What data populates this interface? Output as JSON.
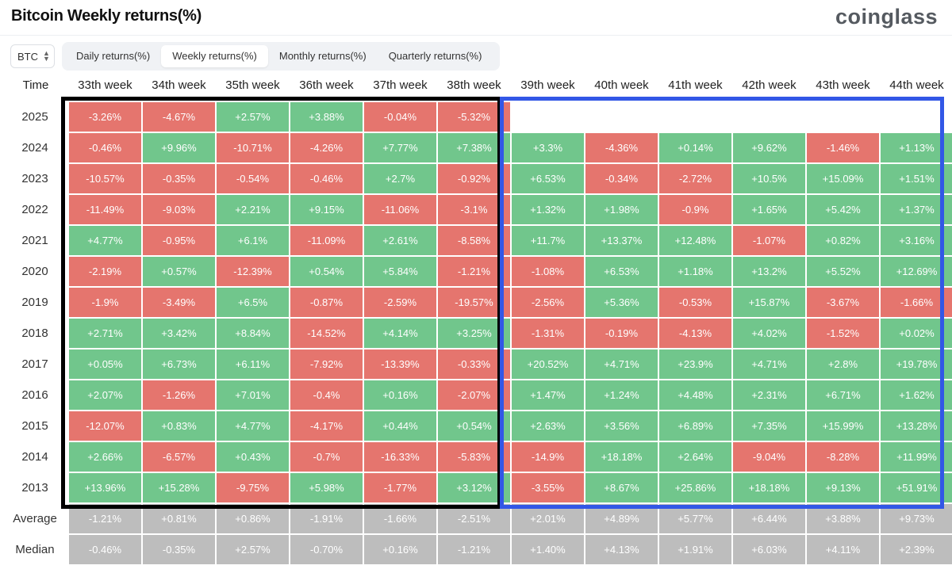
{
  "header": {
    "title": "Bitcoin Weekly returns(%)",
    "brand": "coinglass"
  },
  "controls": {
    "coin_select": "BTC",
    "tabs": [
      {
        "label": "Daily returns(%)",
        "active": false
      },
      {
        "label": "Weekly returns(%)",
        "active": true
      },
      {
        "label": "Monthly returns(%)",
        "active": false
      },
      {
        "label": "Quarterly returns(%)",
        "active": false
      }
    ]
  },
  "table": {
    "time_label": "Time",
    "columns": [
      "33th week",
      "34th week",
      "35th week",
      "36th week",
      "37th week",
      "38th week",
      "39th week",
      "40th week",
      "41th week",
      "42th week",
      "43th week",
      "44th week"
    ],
    "rows": [
      {
        "year": "2025",
        "values": [
          "-3.26%",
          "-4.67%",
          "+2.57%",
          "+3.88%",
          "-0.04%",
          "-5.32%",
          "",
          "",
          "",
          "",
          "",
          ""
        ]
      },
      {
        "year": "2024",
        "values": [
          "-0.46%",
          "+9.96%",
          "-10.71%",
          "-4.26%",
          "+7.77%",
          "+7.38%",
          "+3.3%",
          "-4.36%",
          "+0.14%",
          "+9.62%",
          "-1.46%",
          "+1.13%"
        ]
      },
      {
        "year": "2023",
        "values": [
          "-10.57%",
          "-0.35%",
          "-0.54%",
          "-0.46%",
          "+2.7%",
          "-0.92%",
          "+6.53%",
          "-0.34%",
          "-2.72%",
          "+10.5%",
          "+15.09%",
          "+1.51%"
        ]
      },
      {
        "year": "2022",
        "values": [
          "-11.49%",
          "-9.03%",
          "+2.21%",
          "+9.15%",
          "-11.06%",
          "-3.1%",
          "+1.32%",
          "+1.98%",
          "-0.9%",
          "+1.65%",
          "+5.42%",
          "+1.37%"
        ]
      },
      {
        "year": "2021",
        "values": [
          "+4.77%",
          "-0.95%",
          "+6.1%",
          "-11.09%",
          "+2.61%",
          "-8.58%",
          "+11.7%",
          "+13.37%",
          "+12.48%",
          "-1.07%",
          "+0.82%",
          "+3.16%"
        ]
      },
      {
        "year": "2020",
        "values": [
          "-2.19%",
          "+0.57%",
          "-12.39%",
          "+0.54%",
          "+5.84%",
          "-1.21%",
          "-1.08%",
          "+6.53%",
          "+1.18%",
          "+13.2%",
          "+5.52%",
          "+12.69%"
        ]
      },
      {
        "year": "2019",
        "values": [
          "-1.9%",
          "-3.49%",
          "+6.5%",
          "-0.87%",
          "-2.59%",
          "-19.57%",
          "-2.56%",
          "+5.36%",
          "-0.53%",
          "+15.87%",
          "-3.67%",
          "-1.66%"
        ]
      },
      {
        "year": "2018",
        "values": [
          "+2.71%",
          "+3.42%",
          "+8.84%",
          "-14.52%",
          "+4.14%",
          "+3.25%",
          "-1.31%",
          "-0.19%",
          "-4.13%",
          "+4.02%",
          "-1.52%",
          "+0.02%"
        ]
      },
      {
        "year": "2017",
        "values": [
          "+0.05%",
          "+6.73%",
          "+6.11%",
          "-7.92%",
          "-13.39%",
          "-0.33%",
          "+20.52%",
          "+4.71%",
          "+23.9%",
          "+4.71%",
          "+2.8%",
          "+19.78%"
        ]
      },
      {
        "year": "2016",
        "values": [
          "+2.07%",
          "-1.26%",
          "+7.01%",
          "-0.4%",
          "+0.16%",
          "-2.07%",
          "+1.47%",
          "+1.24%",
          "+4.48%",
          "+2.31%",
          "+6.71%",
          "+1.62%"
        ]
      },
      {
        "year": "2015",
        "values": [
          "-12.07%",
          "+0.83%",
          "+4.77%",
          "-4.17%",
          "+0.44%",
          "+0.54%",
          "+2.63%",
          "+3.56%",
          "+6.89%",
          "+7.35%",
          "+15.99%",
          "+13.28%"
        ]
      },
      {
        "year": "2014",
        "values": [
          "+2.66%",
          "-6.57%",
          "+0.43%",
          "-0.7%",
          "-16.33%",
          "-5.83%",
          "-14.9%",
          "+18.18%",
          "+2.64%",
          "-9.04%",
          "-8.28%",
          "+11.99%"
        ]
      },
      {
        "year": "2013",
        "values": [
          "+13.96%",
          "+15.28%",
          "-9.75%",
          "+5.98%",
          "-1.77%",
          "+3.12%",
          "-3.55%",
          "+8.67%",
          "+25.86%",
          "+18.18%",
          "+9.13%",
          "+51.91%"
        ]
      }
    ],
    "summary": [
      {
        "label": "Average",
        "values": [
          "-1.21%",
          "+0.81%",
          "+0.86%",
          "-1.91%",
          "-1.66%",
          "-2.51%",
          "+2.01%",
          "+4.89%",
          "+5.77%",
          "+6.44%",
          "+3.88%",
          "+9.73%"
        ]
      },
      {
        "label": "Median",
        "values": [
          "-0.46%",
          "-0.35%",
          "+2.57%",
          "-0.70%",
          "+0.16%",
          "-1.21%",
          "+1.40%",
          "+4.13%",
          "+1.91%",
          "+6.03%",
          "+4.11%",
          "+2.39%"
        ]
      }
    ]
  },
  "colors": {
    "positive": "#71c68c",
    "negative": "#e5756e",
    "neutral": "#bdbdbd",
    "highlight_box_1": "#000000",
    "highlight_box_2": "#3257e6"
  }
}
